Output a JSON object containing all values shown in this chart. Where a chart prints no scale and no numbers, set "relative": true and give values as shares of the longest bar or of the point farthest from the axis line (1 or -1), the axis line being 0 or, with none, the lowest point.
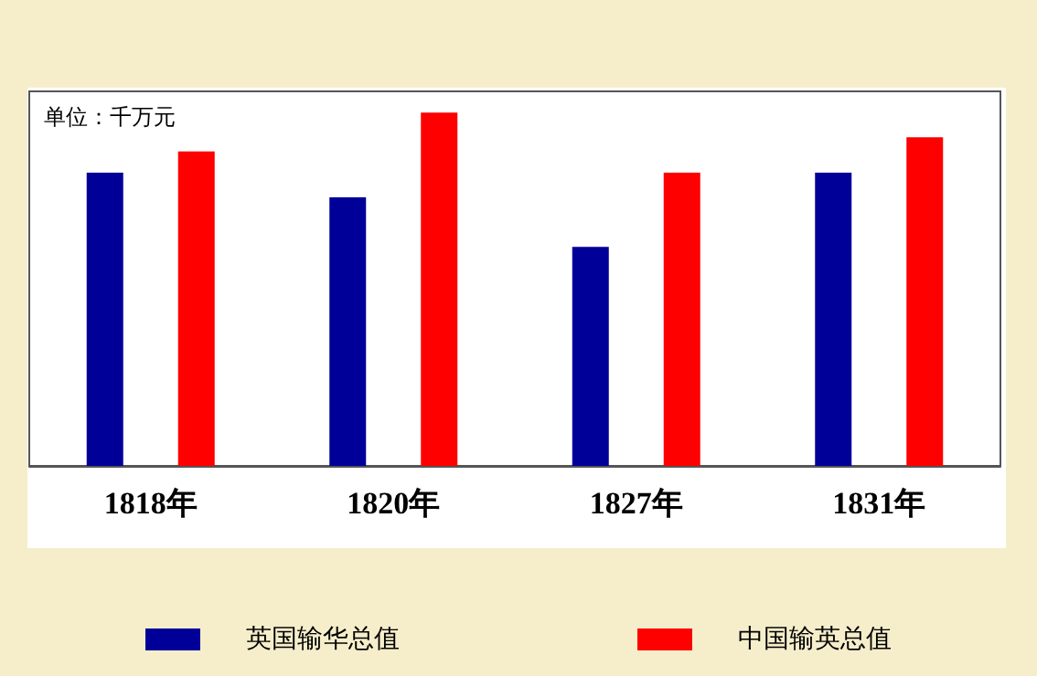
{
  "chart_data": {
    "type": "bar",
    "relative": true,
    "categories": [
      "1818年",
      "1820年",
      "1827年",
      "1831年"
    ],
    "series": [
      {
        "name": "英国输华总值",
        "color": "#000099",
        "values": [
          0.83,
          0.76,
          0.62,
          0.83
        ]
      },
      {
        "name": "中国输英总值",
        "color": "#ff0000",
        "values": [
          0.89,
          1,
          0.83,
          0.93
        ]
      }
    ],
    "annotations": [
      "单位：千万元"
    ],
    "legend": "bottom"
  }
}
